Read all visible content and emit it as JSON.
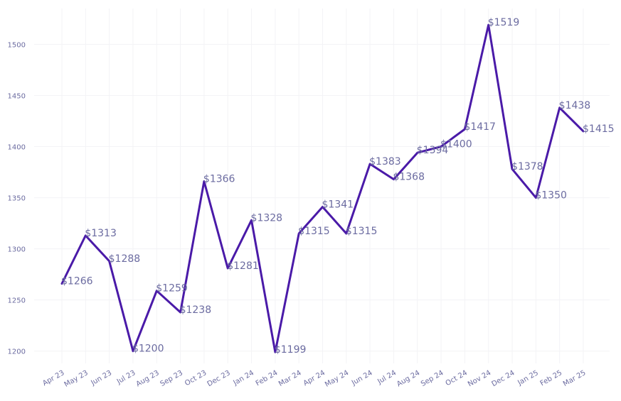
{
  "chart_data": {
    "type": "line",
    "title": "",
    "xlabel": "",
    "ylabel": "",
    "categories": [
      "Apr 23",
      "May 23",
      "Jun 23",
      "Jul 23",
      "Aug 23",
      "Sep 23",
      "Oct 23",
      "Dec 23",
      "Jan 24",
      "Feb 24",
      "Mar 24",
      "Apr 24",
      "May 24",
      "Jun 24",
      "Jul 24",
      "Aug 24",
      "Sep 24",
      "Oct 24",
      "Nov 24",
      "Dec 24",
      "Jan 25",
      "Feb 25",
      "Mar 25"
    ],
    "values": [
      1266,
      1313,
      1288,
      1200,
      1259,
      1238,
      1366,
      1281,
      1328,
      1199,
      1315,
      1341,
      1315,
      1383,
      1368,
      1394,
      1400,
      1417,
      1519,
      1378,
      1350,
      1438,
      1415
    ],
    "data_labels": [
      "$1266",
      "$1313",
      "$1288",
      "$1200",
      "$1259",
      "$1238",
      "$1366",
      "$1281",
      "$1328",
      "$1199",
      "$1315",
      "$1341",
      "$1315",
      "$1383",
      "$1368",
      "$1394",
      "$1400",
      "$1417",
      "$1519",
      "$1378",
      "$1350",
      "$1438",
      "$1415"
    ],
    "y_ticks": [
      1200,
      1250,
      1300,
      1350,
      1400,
      1450,
      1500
    ],
    "ylim": [
      1188,
      1535
    ],
    "grid": true,
    "line_color": "#4a1aa8",
    "label_color": "#6b6ba0"
  }
}
